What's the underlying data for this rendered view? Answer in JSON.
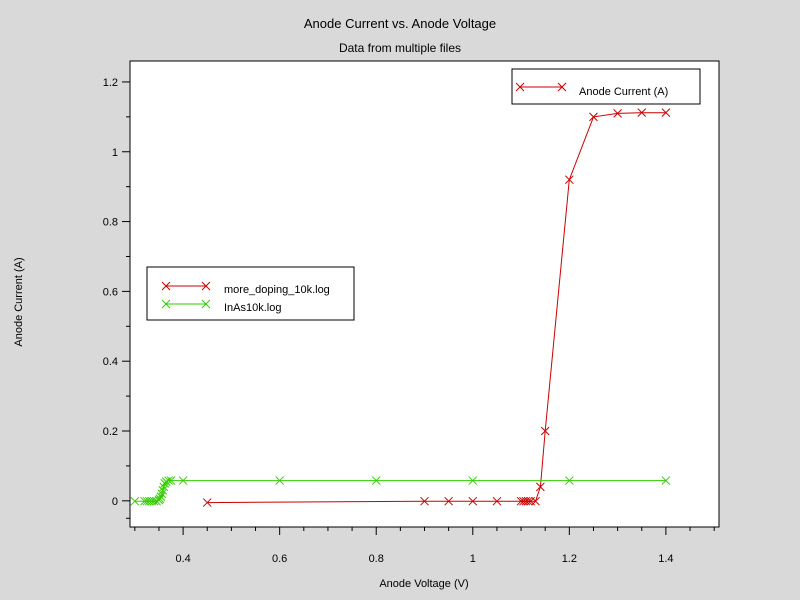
{
  "chart_data": {
    "type": "line",
    "title": "Anode Current vs. Anode Voltage",
    "subtitle": "Data from multiple files",
    "xlabel": "Anode Voltage (V)",
    "ylabel": "Anode Current (A)",
    "xlim": [
      0.29,
      1.51
    ],
    "ylim": [
      -0.075,
      1.26
    ],
    "x_ticks": [
      0.4,
      0.6,
      0.8,
      1.0,
      1.2,
      1.4
    ],
    "x_tick_labels": [
      "0.4",
      "0.6",
      "0.8",
      "1",
      "1.2",
      "1.4"
    ],
    "y_ticks": [
      0,
      0.2,
      0.4,
      0.6,
      0.8,
      1.0,
      1.2
    ],
    "y_tick_labels": [
      "0",
      "0.2",
      "0.4",
      "0.6",
      "0.8",
      "1",
      "1.2"
    ],
    "grid": false,
    "legend_position": "middle-left",
    "variable_legend": {
      "label": "Anode Current (A)",
      "position": "top-right",
      "color": "#cc0000"
    },
    "series": [
      {
        "name": "more_doping_10k.log",
        "color": "#cc0000",
        "x": [
          0.45,
          0.9,
          0.95,
          1.0,
          1.05,
          1.1,
          1.105,
          1.11,
          1.115,
          1.12,
          1.13,
          1.14,
          1.15,
          1.2,
          1.25,
          1.3,
          1.35,
          1.4
        ],
        "y": [
          -0.005,
          -0.001,
          -0.001,
          -0.001,
          -0.001,
          -0.001,
          -0.001,
          -0.001,
          -0.001,
          -0.001,
          -0.001,
          0.04,
          0.2,
          0.92,
          1.1,
          1.11,
          1.112,
          1.112
        ]
      },
      {
        "name": "InAs10k.log",
        "color": "#33cc00",
        "x": [
          0.3,
          0.32,
          0.325,
          0.33,
          0.335,
          0.34,
          0.345,
          0.35,
          0.352,
          0.354,
          0.356,
          0.358,
          0.36,
          0.362,
          0.365,
          0.37,
          0.375,
          0.4,
          0.6,
          0.8,
          1.0,
          1.2,
          1.4
        ],
        "y": [
          -0.001,
          -0.001,
          -0.001,
          -0.001,
          -0.001,
          -0.001,
          -0.001,
          0.002,
          0.006,
          0.012,
          0.02,
          0.03,
          0.04,
          0.05,
          0.055,
          0.058,
          0.058,
          0.058,
          0.058,
          0.058,
          0.058,
          0.058,
          0.058
        ]
      }
    ]
  }
}
